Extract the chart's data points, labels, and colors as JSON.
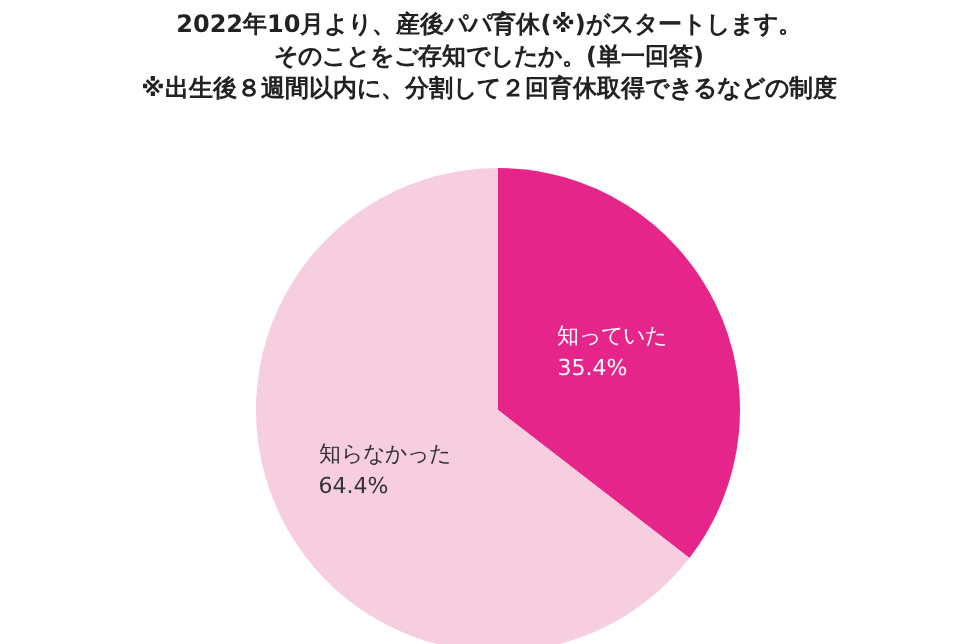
{
  "chart_data": {
    "type": "pie",
    "title": "2022年10月より、産後パパ育休(※)がスタートします。",
    "subtitle": "そのことをご存知でしたか。(単一回答)",
    "annotations": [
      "※出生後８週間以内に、分割して２回育休取得できるなどの制度"
    ],
    "categories": [
      "知っていた",
      "知らなかった"
    ],
    "values": [
      35.4,
      64.4
    ],
    "value_labels": [
      "35.4%",
      "64.4%"
    ],
    "colors": [
      "#e5258a",
      "#f7cde0"
    ],
    "legend": false
  }
}
